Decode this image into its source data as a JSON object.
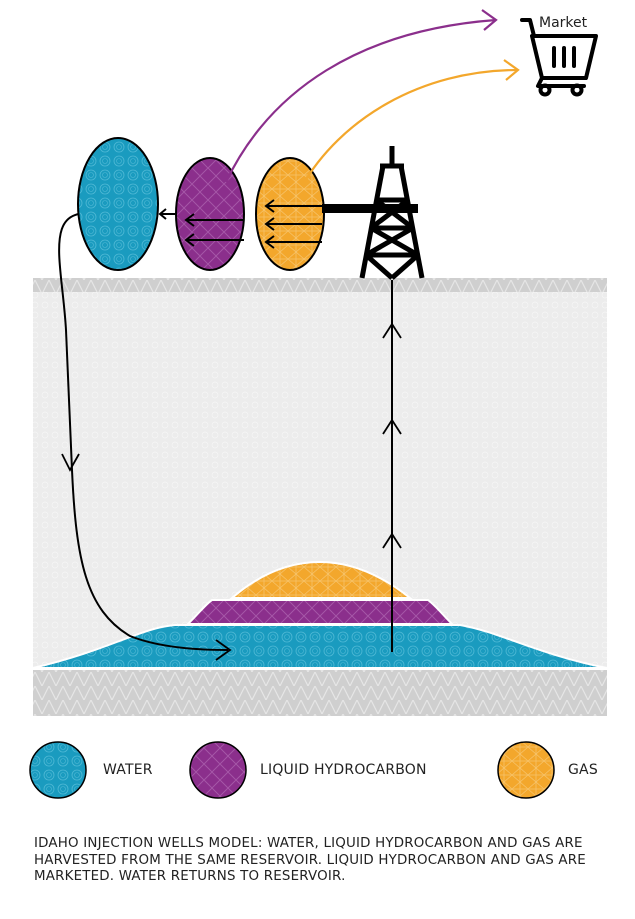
{
  "diagram": {
    "market_label": "Market",
    "colors": {
      "water": "#1a9bbf",
      "liquid_hydrocarbon": "#8b2f8c",
      "gas": "#f3a72c",
      "market_arrow_liquid": "#8b2f8c",
      "market_arrow_gas": "#f3a72c",
      "rock": "#cfcfcf",
      "reservoir_body": "#ececec"
    },
    "icons": [
      "cart-icon",
      "derrick-icon"
    ]
  },
  "legend": {
    "water_label": "WATER",
    "liquid_label": "LIQUID HYDROCARBON",
    "gas_label": "GAS"
  },
  "caption": "IDAHO INJECTION WELLS MODEL: WATER, LIQUID HYDROCARBON AND GAS ARE HARVESTED FROM THE SAME RESERVOIR. LIQUID HYDROCARBON AND GAS ARE MARKETED. WATER RETURNS TO RESERVOIR."
}
